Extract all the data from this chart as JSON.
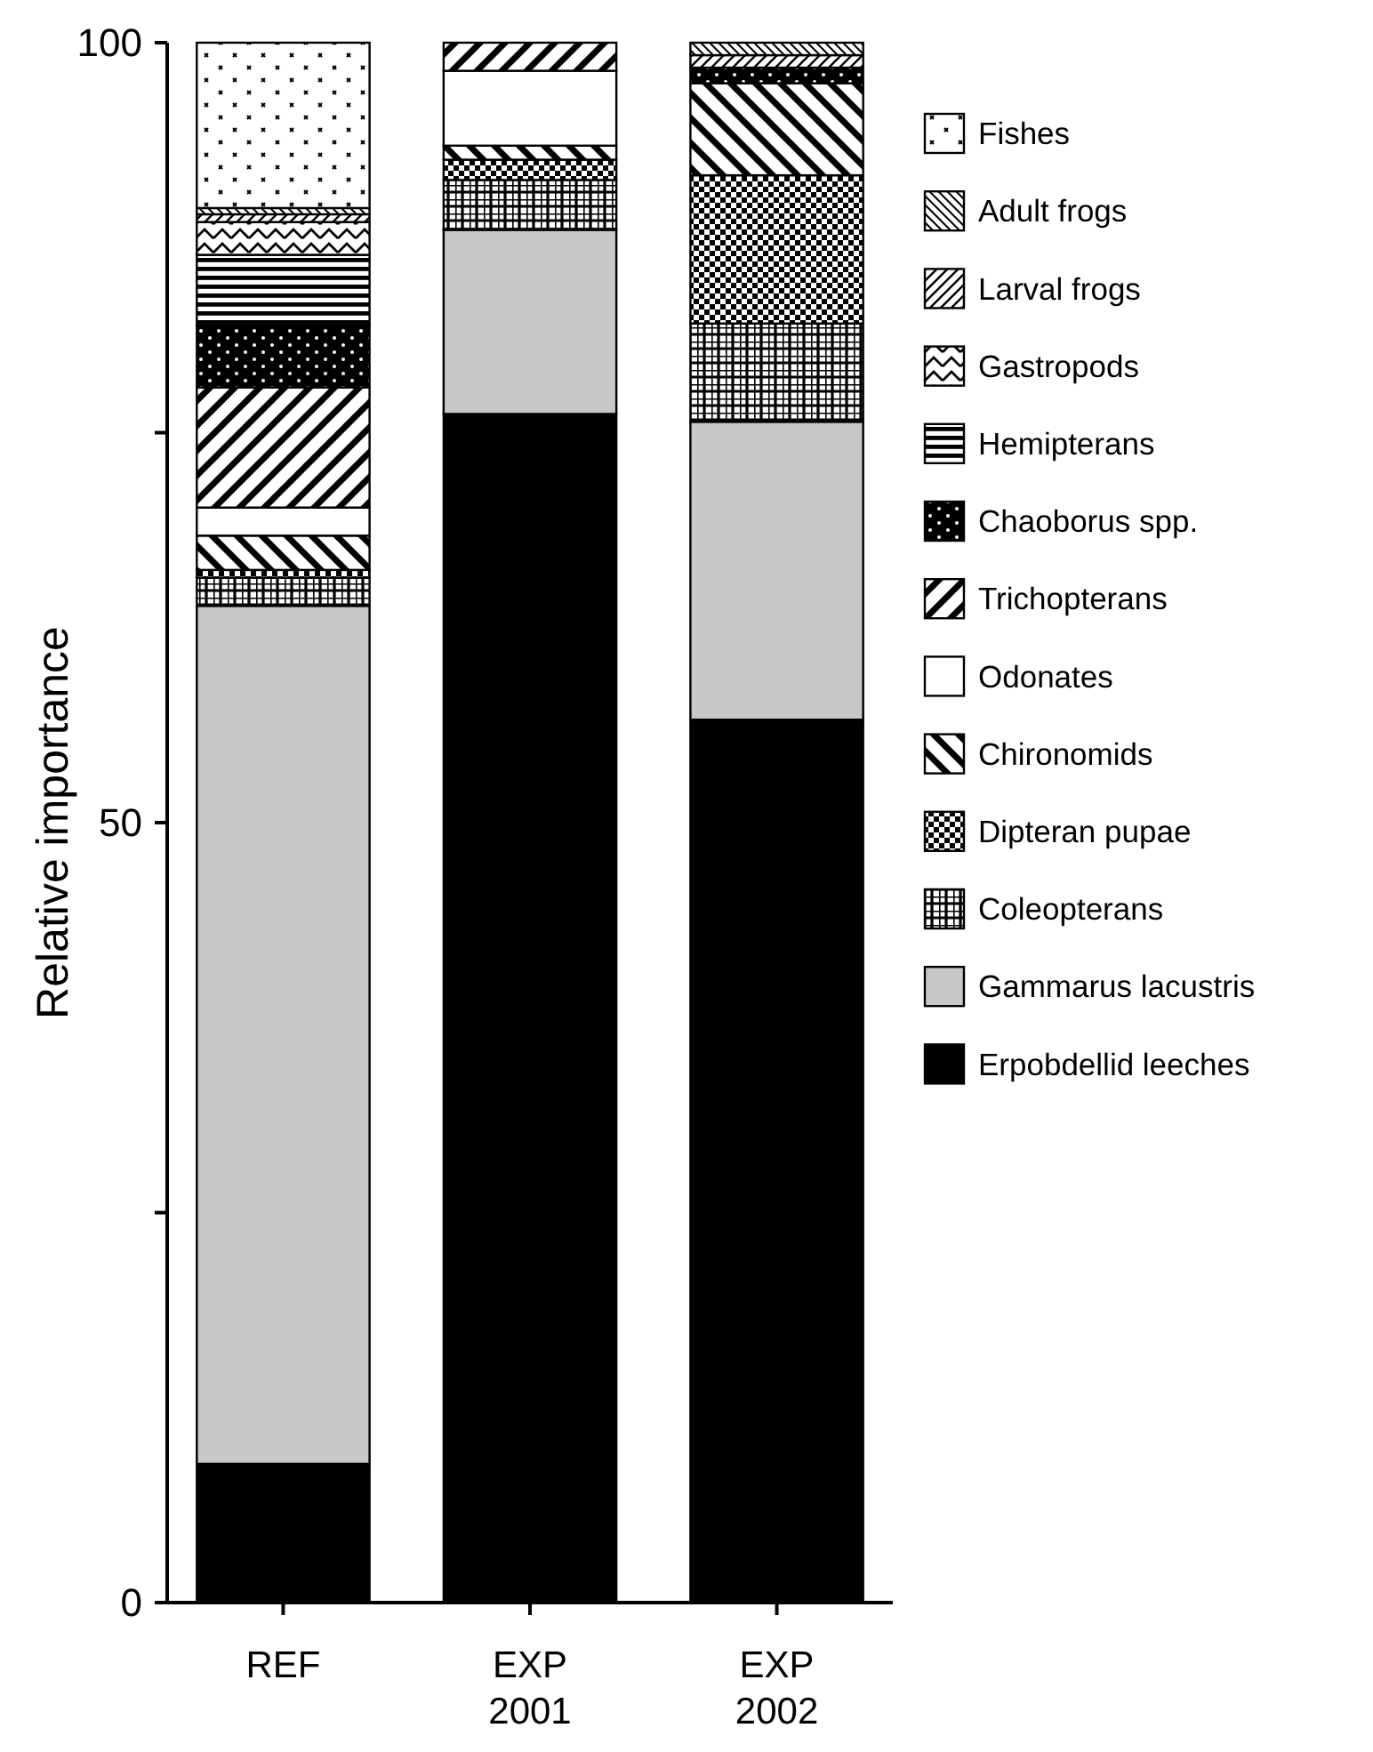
{
  "chart_data": {
    "type": "bar",
    "stacked": true,
    "ylabel": "Relative importance",
    "categories": [
      "REF",
      "EXP 2001",
      "EXP 2002"
    ],
    "ylim": [
      0,
      100
    ],
    "yticks": [
      0,
      {
        "value": 25,
        "label": null
      },
      50,
      {
        "value": 75,
        "label": null
      },
      100
    ],
    "legend": "right",
    "grid": false,
    "series": [
      {
        "name": "Erpobdellid leeches",
        "color": "#000000",
        "values": [
          8.9,
          76.2,
          56.6
        ]
      },
      {
        "name": "Gammarus lacustris",
        "color": "#c8c8c8",
        "values": [
          55.0,
          11.8,
          19.1
        ]
      },
      {
        "name": "Coleopterans",
        "color": "#000000",
        "values": [
          1.8,
          3.2,
          6.3
        ]
      },
      {
        "name": "Dipteran pupae",
        "color": "#000000",
        "values": [
          0.5,
          1.3,
          9.5
        ]
      },
      {
        "name": "Chironomids",
        "color": "#000000",
        "values": [
          2.2,
          0.9,
          5.9
        ]
      },
      {
        "name": "Odonates",
        "color": "#ffffff",
        "values": [
          1.8,
          4.8,
          null
        ]
      },
      {
        "name": "Trichopterans",
        "color": "#000000",
        "values": [
          7.7,
          1.8,
          null
        ]
      },
      {
        "name": "Chaoborus spp.",
        "color": "#000000",
        "values": [
          4.0,
          null,
          1.0
        ]
      },
      {
        "name": "Hemipterans",
        "color": "#000000",
        "values": [
          4.5,
          null,
          null
        ]
      },
      {
        "name": "Gastropods",
        "color": "#000000",
        "values": [
          2.1,
          null,
          null
        ]
      },
      {
        "name": "Larval frogs",
        "color": "#000000",
        "values": [
          0.5,
          null,
          0.8
        ]
      },
      {
        "name": "Adult frogs",
        "color": "#000000",
        "values": [
          0.4,
          null,
          0.8
        ]
      },
      {
        "name": "Fishes",
        "color": "#000000",
        "values": [
          10.6,
          null,
          null
        ]
      }
    ]
  }
}
